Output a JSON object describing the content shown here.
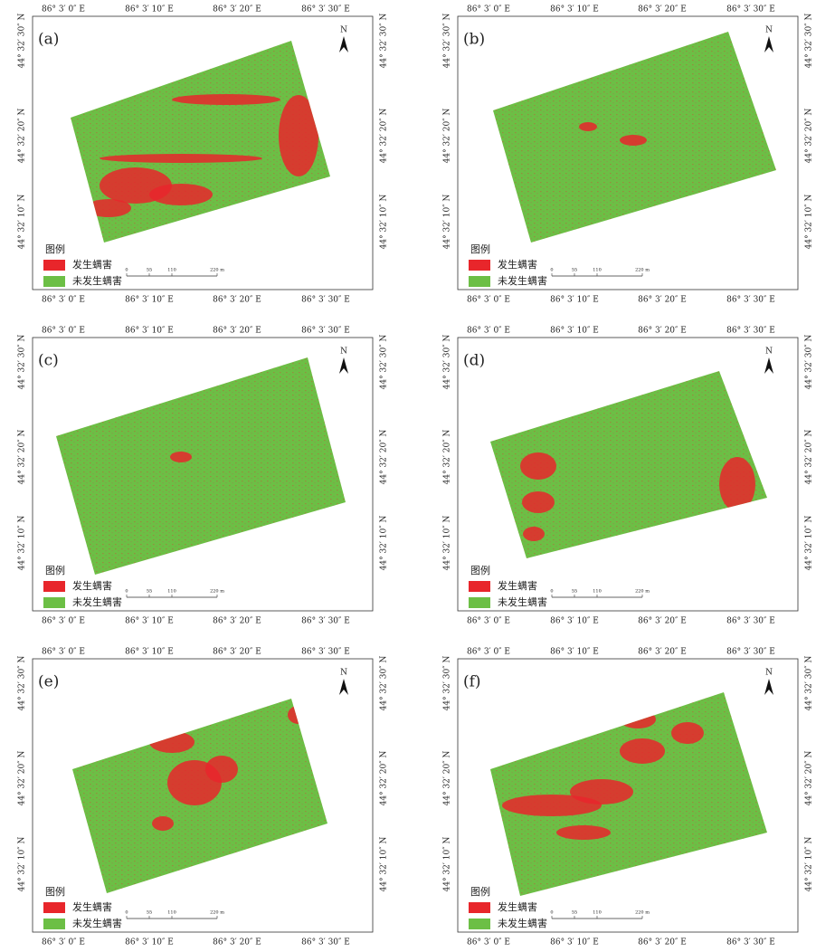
{
  "panels": [
    {
      "label": "(a)"
    },
    {
      "label": "(b)"
    },
    {
      "label": "(c)"
    },
    {
      "label": "(d)"
    },
    {
      "label": "(e)"
    },
    {
      "label": "(f)"
    }
  ],
  "axes": {
    "x_labels": [
      "86° 3′ 0″ E",
      "86° 3′ 10″ E",
      "86° 3′ 20″ E",
      "86° 3′ 30″ E"
    ],
    "y_labels": [
      "44° 32′ 30″ N",
      "44° 32′ 20″ N",
      "44° 32′ 10″ N"
    ]
  },
  "north": "N",
  "legend": {
    "title": "图例",
    "items": [
      "发生螨害",
      "未发生螨害"
    ]
  },
  "scale": {
    "labels": [
      "0",
      "55",
      "110",
      "220 m"
    ]
  }
}
